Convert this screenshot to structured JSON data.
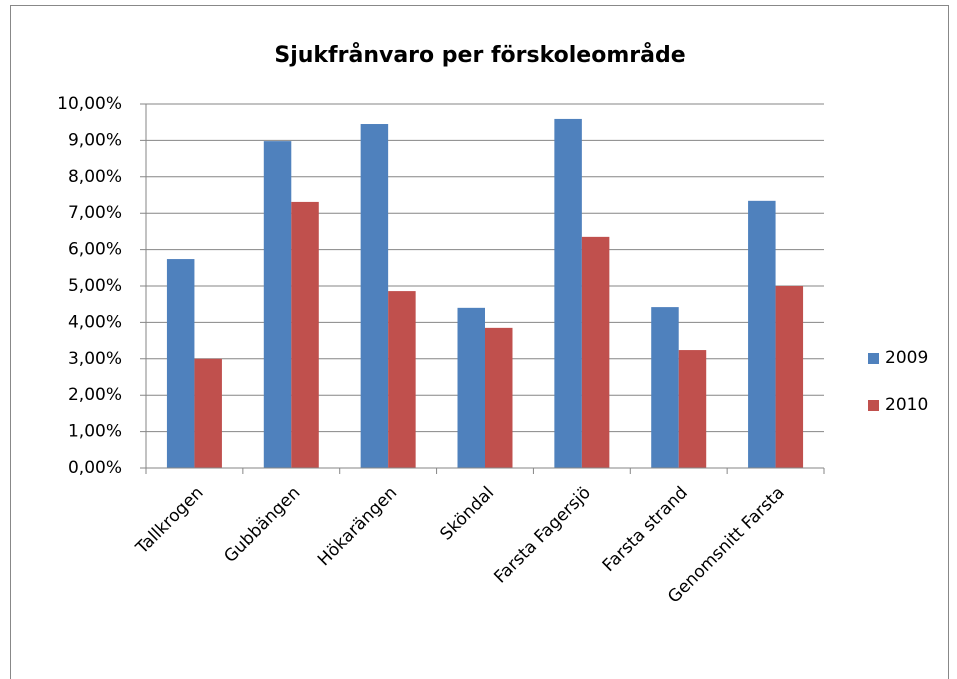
{
  "chart_data": {
    "type": "bar",
    "title": "Sjukfrånvaro per förskoleområde",
    "categories": [
      "Tallkrogen",
      "Gubbängen",
      "Hökarängen",
      "Sköndal",
      "Farsta Fagersjö",
      "Farsta strand",
      "Genomsnitt Farsta"
    ],
    "series": [
      {
        "name": "2009",
        "color": "#4f81bd",
        "values": [
          5.74,
          8.98,
          9.45,
          4.4,
          9.59,
          4.42,
          7.34
        ]
      },
      {
        "name": "2010",
        "color": "#c0504d",
        "values": [
          3.0,
          7.31,
          4.86,
          3.85,
          6.35,
          3.24,
          5.0
        ]
      }
    ],
    "ylim": [
      0,
      10
    ],
    "yticks": [
      {
        "value": 0,
        "label": "0,00%"
      },
      {
        "value": 1,
        "label": "1,00%"
      },
      {
        "value": 2,
        "label": "2,00%"
      },
      {
        "value": 3,
        "label": "3,00%"
      },
      {
        "value": 4,
        "label": "4,00%"
      },
      {
        "value": 5,
        "label": "5,00%"
      },
      {
        "value": 6,
        "label": "6,00%"
      },
      {
        "value": 7,
        "label": "7,00%"
      },
      {
        "value": 8,
        "label": "8,00%"
      },
      {
        "value": 9,
        "label": "9,00%"
      },
      {
        "value": 10,
        "label": "10,00%"
      }
    ],
    "grid": true,
    "legend": "right"
  }
}
